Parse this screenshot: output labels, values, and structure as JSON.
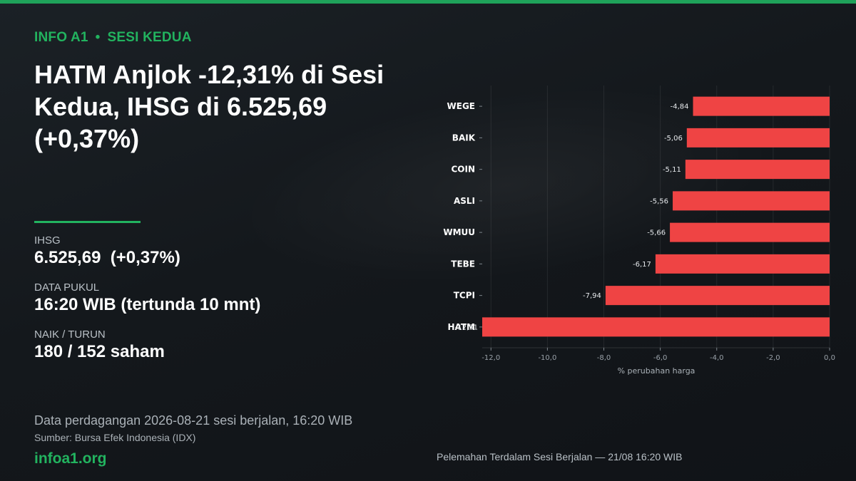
{
  "header": {
    "brand": "INFO A1",
    "separator": "•",
    "session": "SESI KEDUA",
    "headline": "HATM Anjlok -12,31% di Sesi Kedua, IHSG di 6.525,69 (+0,37%)"
  },
  "stats": [
    {
      "label": "IHSG",
      "value": "6.525,69  (+0,37%)"
    },
    {
      "label": "DATA PUKUL",
      "value": "16:20 WIB (tertunda 10 mnt)"
    },
    {
      "label": "NAIK / TURUN",
      "value": "180 / 152 saham"
    }
  ],
  "footer": {
    "note": "Data perdagangan 2026-08-21 sesi berjalan, 16:20 WIB",
    "source": "Sumber: Bursa Efek Indonesia (IDX)",
    "site": "infoa1.org"
  },
  "colors": {
    "accent": "#22b35f",
    "bar": "#ef4444",
    "background": "#14181c"
  },
  "chart_data": {
    "type": "bar",
    "orientation": "horizontal",
    "categories": [
      "WEGE",
      "BAIK",
      "COIN",
      "ASLI",
      "WMUU",
      "TEBE",
      "TCPI",
      "HATM"
    ],
    "values": [
      -4.84,
      -5.06,
      -5.11,
      -5.56,
      -5.66,
      -6.17,
      -7.94,
      -12.31
    ],
    "value_labels": [
      "-4,84",
      "-5,06",
      "-5,11",
      "-5,56",
      "-5,66",
      "-6,17",
      "-7,94",
      "-12,31"
    ],
    "xlim": [
      -12.31,
      0
    ],
    "xticks": [
      -12,
      -10,
      -8,
      -6,
      -4,
      -2,
      0
    ],
    "xtick_labels": [
      "-12,0",
      "-10,0",
      "-8,0",
      "-6,0",
      "-4,0",
      "-2,0",
      "0,0"
    ],
    "xlabel": "% perubahan harga",
    "caption": "Pelemahan Terdalam Sesi Berjalan — 21/08 16:20 WIB",
    "grid": true
  }
}
